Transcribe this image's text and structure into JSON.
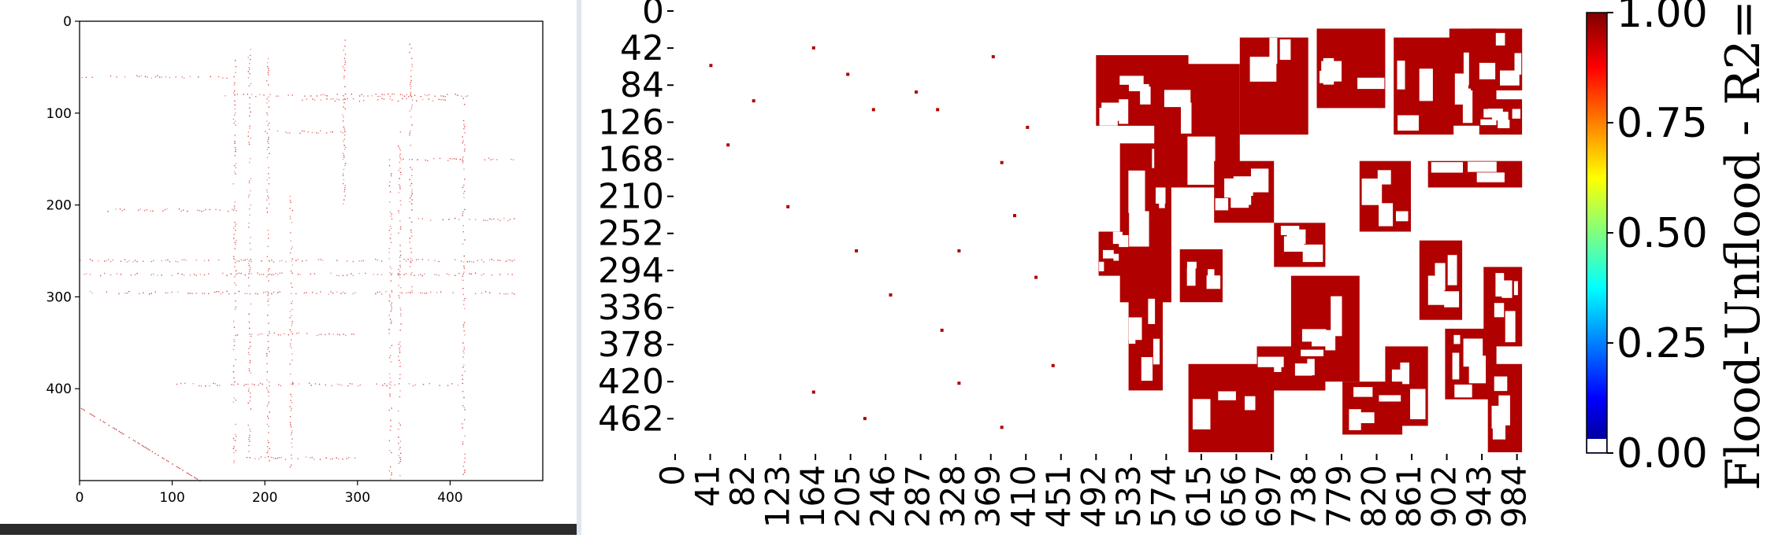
{
  "chart_data": [
    {
      "type": "heatmap",
      "title": "",
      "xlabel": "",
      "ylabel": "",
      "x_ticks": [
        "0",
        "100",
        "200",
        "300",
        "400"
      ],
      "y_ticks": [
        "0",
        "100",
        "200",
        "300",
        "400"
      ],
      "xlim": [
        0,
        500
      ],
      "ylim": [
        500,
        0
      ],
      "grid": false,
      "colors": {
        "points": "#d43c3c"
      },
      "roads": {
        "vertical": [
          [
            167,
            40,
            480
          ],
          [
            183,
            30,
            480
          ],
          [
            203,
            40,
            480
          ],
          [
            228,
            190,
            500
          ],
          [
            285,
            20,
            200
          ],
          [
            335,
            150,
            500
          ],
          [
            345,
            120,
            500
          ],
          [
            357,
            20,
            300
          ],
          [
            414,
            90,
            500
          ]
        ],
        "horizontal": [
          [
            60,
            0,
            160
          ],
          [
            80,
            150,
            420
          ],
          [
            85,
            240,
            420
          ],
          [
            120,
            200,
            300
          ],
          [
            150,
            340,
            470
          ],
          [
            205,
            30,
            170
          ],
          [
            215,
            330,
            470
          ],
          [
            260,
            0,
            470
          ],
          [
            275,
            0,
            470
          ],
          [
            295,
            0,
            470
          ],
          [
            340,
            170,
            300
          ],
          [
            395,
            100,
            420
          ],
          [
            475,
            180,
            300
          ]
        ],
        "diagonal": [
          [
            0,
            420,
            130,
            500
          ]
        ]
      }
    },
    {
      "type": "heatmap",
      "title": "",
      "xlabel": "",
      "ylabel": "",
      "x_ticks": [
        "0",
        "41",
        "82",
        "123",
        "164",
        "205",
        "246",
        "287",
        "328",
        "369",
        "410",
        "451",
        "492",
        "533",
        "574",
        "615",
        "656",
        "697",
        "738",
        "779",
        "820",
        "861",
        "902",
        "943",
        "984"
      ],
      "y_ticks": [
        "0",
        "42",
        "84",
        "126",
        "168",
        "210",
        "252",
        "294",
        "336",
        "378",
        "420",
        "462"
      ],
      "xlim": [
        0,
        1000
      ],
      "ylim": [
        500,
        0
      ],
      "colorbar": {
        "label": "Flood-Unflood - R2=",
        "ticks": [
          "1.00",
          "0.75",
          "0.50",
          "0.25",
          "0.00"
        ],
        "range": [
          0.0,
          1.0
        ],
        "colormap": "jet"
      },
      "colors": {
        "flood": "#b00000"
      },
      "flood_blocks": [
        [
          492,
          50,
          600,
          130
        ],
        [
          520,
          150,
          580,
          330
        ],
        [
          560,
          60,
          660,
          200
        ],
        [
          660,
          30,
          740,
          140
        ],
        [
          750,
          20,
          830,
          110
        ],
        [
          840,
          30,
          910,
          140
        ],
        [
          905,
          20,
          960,
          130
        ],
        [
          930,
          20,
          990,
          90
        ],
        [
          940,
          100,
          990,
          140
        ],
        [
          495,
          250,
          530,
          300
        ],
        [
          530,
          320,
          570,
          430
        ],
        [
          600,
          400,
          700,
          500
        ],
        [
          720,
          300,
          800,
          420
        ],
        [
          800,
          170,
          860,
          250
        ],
        [
          830,
          380,
          880,
          470
        ],
        [
          870,
          260,
          920,
          350
        ],
        [
          900,
          360,
          960,
          440
        ],
        [
          945,
          290,
          990,
          380
        ],
        [
          950,
          400,
          990,
          500
        ],
        [
          630,
          170,
          700,
          240
        ],
        [
          700,
          240,
          760,
          290
        ],
        [
          590,
          270,
          640,
          330
        ],
        [
          780,
          420,
          850,
          480
        ],
        [
          880,
          170,
          990,
          200
        ],
        [
          680,
          380,
          760,
          430
        ]
      ],
      "isolated_points": [
        [
          40,
          60
        ],
        [
          60,
          150
        ],
        [
          90,
          100
        ],
        [
          160,
          40
        ],
        [
          200,
          70
        ],
        [
          230,
          110
        ],
        [
          280,
          90
        ],
        [
          305,
          110
        ],
        [
          370,
          50
        ],
        [
          380,
          170
        ],
        [
          410,
          130
        ],
        [
          130,
          220
        ],
        [
          210,
          270
        ],
        [
          250,
          320
        ],
        [
          310,
          360
        ],
        [
          330,
          270
        ],
        [
          395,
          230
        ],
        [
          420,
          300
        ],
        [
          440,
          400
        ],
        [
          160,
          430
        ],
        [
          220,
          460
        ],
        [
          330,
          420
        ],
        [
          380,
          470
        ]
      ]
    }
  ]
}
